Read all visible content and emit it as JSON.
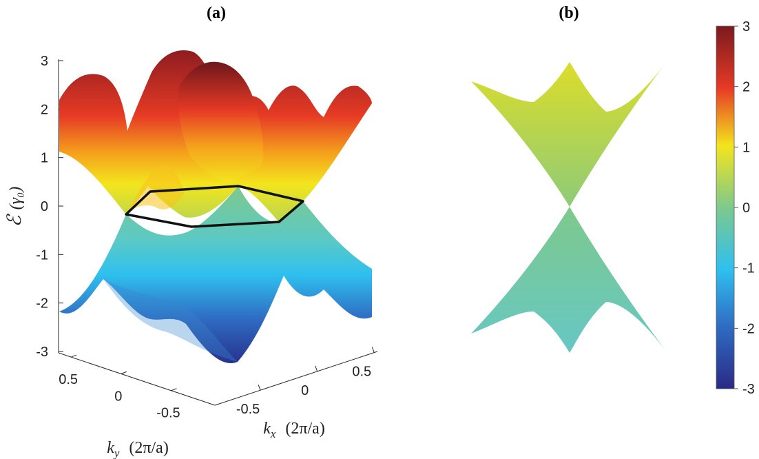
{
  "chart_data": [
    {
      "panel": "(a)",
      "type": "surface3d",
      "description_of_series": "graphene pi bands: conduction (upper) and valence (lower) surfaces over the kx-ky plane, with hexagonal Brillouin zone outline at E=0",
      "z_axis": {
        "label": "ℰ",
        "unit": "(γ₀)",
        "ticks": [
          3,
          2,
          1,
          0,
          -1,
          -2,
          -3
        ],
        "tick_labels": [
          "3",
          "2",
          "1",
          "0",
          "-1",
          "-2",
          "-3"
        ],
        "range": [
          -3,
          3
        ]
      },
      "x_axis": {
        "label_var": "k",
        "label_sub": "x",
        "unit": "(2π/a)",
        "ticks": [
          -0.5,
          0,
          0.5
        ],
        "tick_labels": [
          "-0.5",
          "0",
          "0.5"
        ]
      },
      "y_axis": {
        "label_var": "k",
        "label_sub": "y",
        "unit": "(2π/a)",
        "ticks": [
          0.5,
          0,
          -0.5
        ],
        "tick_labels": [
          "0.5",
          "0",
          "-0.5"
        ]
      },
      "band_max": 3,
      "band_min": -3
    },
    {
      "panel": "(b)",
      "type": "surface-side-view",
      "description_of_series": "same bands viewed edge-on; Dirac cones meeting at E=0",
      "energy_range": [
        -3,
        3
      ]
    }
  ],
  "colorbar": {
    "colormap": "parula-like (dark blue → cyan → green → yellow → red → dark red)",
    "range": [
      -3,
      3
    ],
    "ticks": [
      "3",
      "2",
      "1",
      "0",
      "-1",
      "-2",
      "-3"
    ]
  },
  "colors": {
    "c_m3": "#2a2a85",
    "c_m2": "#2f6bc2",
    "c_m1": "#2fc0ef",
    "c_0": "#7ec98c",
    "c_p05": "#b9d64e",
    "c_p1": "#f3e51d",
    "c_p15": "#f5a21c",
    "c_p2": "#e63a25",
    "c_p3": "#7a1a1f",
    "bz_line": "#111111"
  }
}
